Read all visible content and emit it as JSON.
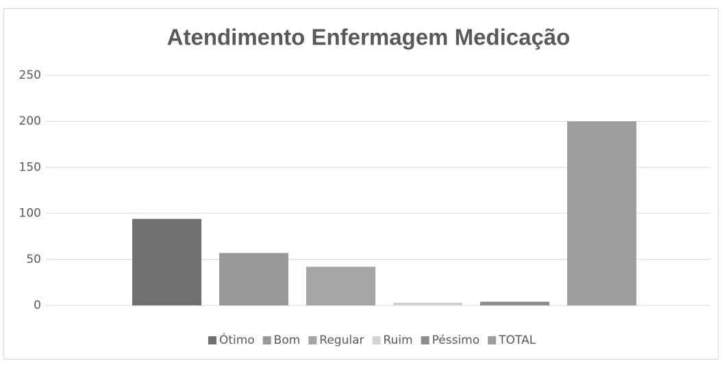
{
  "chart_data": {
    "type": "bar",
    "title": "Atendimento Enfermagem Medicação",
    "categories": [
      null
    ],
    "series": [
      {
        "name": "Ótimo",
        "color": "#707070",
        "values": [
          94
        ]
      },
      {
        "name": "Bom",
        "color": "#999999",
        "values": [
          57
        ]
      },
      {
        "name": "Regular",
        "color": "#a5a5a5",
        "values": [
          42
        ]
      },
      {
        "name": "Ruim",
        "color": "#d2d2d2",
        "values": [
          3
        ]
      },
      {
        "name": "Péssimo",
        "color": "#8c8c8c",
        "values": [
          4
        ]
      },
      {
        "name": "TOTAL",
        "color": "#9e9e9e",
        "values": [
          200
        ]
      }
    ],
    "ylim": [
      0,
      250
    ],
    "yticks": [
      0,
      50,
      100,
      150,
      200,
      250
    ],
    "grid": true,
    "legend": "bottom"
  }
}
